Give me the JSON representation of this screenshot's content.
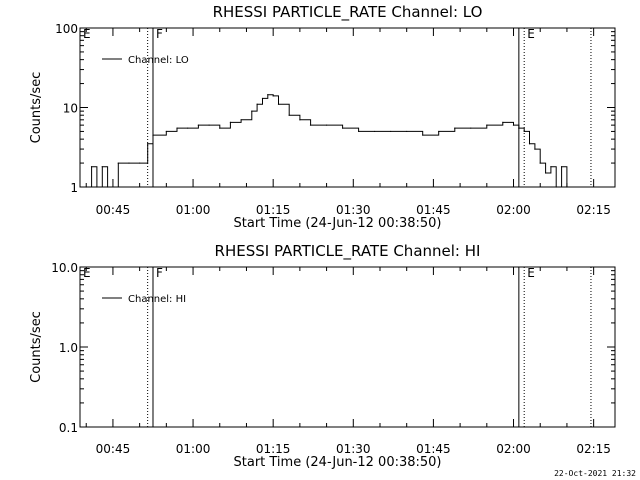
{
  "chart_data": [
    {
      "type": "line",
      "title": "RHESSI PARTICLE_RATE Channel: LO",
      "xlabel": "Start Time (24-Jun-12 00:38:50)",
      "ylabel": "Counts/sec",
      "y_scale": "log",
      "ylim": [
        1,
        100
      ],
      "xlim": [
        "00:38:50",
        "02:19:00"
      ],
      "yticks": [
        "1",
        "10",
        "100"
      ],
      "xticks": [
        "00:45",
        "01:00",
        "01:15",
        "01:30",
        "01:45",
        "02:00",
        "02:15"
      ],
      "legend": "top-left",
      "series": [
        {
          "name": "Channel: LO",
          "color": "#000000",
          "x": [
            "00:40:00",
            "00:41:00",
            "00:42:00",
            "00:43:00",
            "00:44:00",
            "00:46:00",
            "00:48:00",
            "00:50:00",
            "00:51:30",
            "00:52:30",
            "00:55:00",
            "00:57:00",
            "00:59:00",
            "01:01:00",
            "01:03:00",
            "01:05:00",
            "01:07:00",
            "01:09:00",
            "01:11:00",
            "01:12:00",
            "01:13:00",
            "01:14:00",
            "01:15:00",
            "01:16:00",
            "01:18:00",
            "01:20:00",
            "01:22:00",
            "01:25:00",
            "01:28:00",
            "01:31:00",
            "01:34:00",
            "01:37:00",
            "01:40:00",
            "01:43:00",
            "01:46:00",
            "01:49:00",
            "01:52:00",
            "01:55:00",
            "01:58:00",
            "02:00:00",
            "02:01:00",
            "02:02:00",
            "02:03:00",
            "02:04:00",
            "02:05:00",
            "02:06:00",
            "02:07:00",
            "02:08:00",
            "02:09:00",
            "02:10:00"
          ],
          "values": [
            1,
            1.8,
            1,
            1.8,
            1,
            2,
            2,
            2,
            3.5,
            4.5,
            5,
            5.5,
            5.5,
            6,
            6,
            5.5,
            6.5,
            7,
            9,
            11,
            13,
            14.5,
            14,
            11,
            8,
            7,
            6,
            6,
            5.5,
            5,
            5,
            5,
            5,
            4.5,
            5,
            5.5,
            5.5,
            6,
            6.5,
            6,
            5.5,
            5,
            3.5,
            3,
            2,
            1.5,
            1.8,
            1,
            1.8,
            1
          ]
        }
      ],
      "markers": [
        {
          "label": "E",
          "time": "00:38:50",
          "style": "solid"
        },
        {
          "label": "",
          "time": "00:51:30",
          "style": "dotted"
        },
        {
          "label": "F",
          "time": "00:52:30",
          "style": "solid"
        },
        {
          "label": "",
          "time": "02:01:00",
          "style": "solid"
        },
        {
          "label": "E",
          "time": "02:02:00",
          "style": "dotted"
        },
        {
          "label": "",
          "time": "02:14:30",
          "style": "dotted"
        }
      ]
    },
    {
      "type": "line",
      "title": "RHESSI PARTICLE_RATE Channel: HI",
      "xlabel": "Start Time (24-Jun-12 00:38:50)",
      "ylabel": "Counts/sec",
      "y_scale": "log",
      "ylim": [
        0.1,
        10
      ],
      "xlim": [
        "00:38:50",
        "02:19:00"
      ],
      "yticks": [
        "0.1",
        "1.0",
        "10.0"
      ],
      "xticks": [
        "00:45",
        "01:00",
        "01:15",
        "01:30",
        "01:45",
        "02:00",
        "02:15"
      ],
      "legend": "top-left",
      "series": [
        {
          "name": "Channel: HI",
          "color": "#000000",
          "x": [],
          "values": []
        }
      ],
      "markers": [
        {
          "label": "E",
          "time": "00:38:50",
          "style": "solid"
        },
        {
          "label": "",
          "time": "00:51:30",
          "style": "dotted"
        },
        {
          "label": "F",
          "time": "00:52:30",
          "style": "solid"
        },
        {
          "label": "",
          "time": "02:01:00",
          "style": "solid"
        },
        {
          "label": "E",
          "time": "02:02:00",
          "style": "dotted"
        },
        {
          "label": "",
          "time": "02:14:30",
          "style": "dotted"
        }
      ]
    }
  ],
  "footer": {
    "timestamp": "22-Oct-2021 21:32"
  }
}
